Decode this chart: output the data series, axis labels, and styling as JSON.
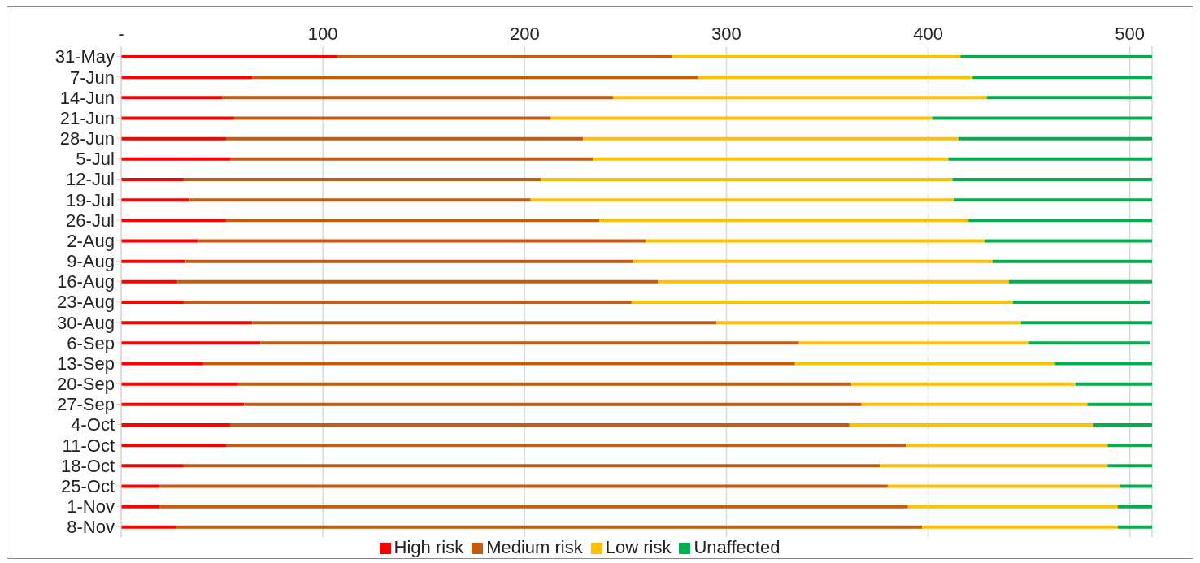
{
  "chart_data": {
    "type": "bar",
    "orientation": "horizontal",
    "stacked": true,
    "categories": [
      "31-May",
      "7-Jun",
      "14-Jun",
      "21-Jun",
      "28-Jun",
      "5-Jul",
      "12-Jul",
      "19-Jul",
      "26-Jul",
      "2-Aug",
      "9-Aug",
      "16-Aug",
      "23-Aug",
      "30-Aug",
      "6-Sep",
      "13-Sep",
      "20-Sep",
      "27-Sep",
      "4-Oct",
      "11-Oct",
      "18-Oct",
      "25-Oct",
      "1-Nov",
      "8-Nov"
    ],
    "series": [
      {
        "name": "High risk",
        "color": "#ff0000",
        "values": [
          107,
          65,
          50,
          56,
          52,
          54,
          31,
          34,
          52,
          38,
          32,
          28,
          31,
          65,
          69,
          41,
          58,
          61,
          54,
          52,
          31,
          19,
          19,
          27
        ]
      },
      {
        "name": "Medium risk",
        "color": "#c55a11",
        "values": [
          166,
          221,
          194,
          157,
          177,
          180,
          177,
          169,
          185,
          222,
          222,
          238,
          222,
          230,
          267,
          293,
          304,
          306,
          307,
          337,
          345,
          361,
          371,
          370
        ]
      },
      {
        "name": "Low risk",
        "color": "#ffc000",
        "values": [
          143,
          136,
          185,
          189,
          186,
          176,
          204,
          210,
          183,
          168,
          178,
          174,
          189,
          151,
          114,
          129,
          111,
          112,
          121,
          100,
          113,
          115,
          104,
          97
        ]
      },
      {
        "name": "Unaffected",
        "color": "#00b050",
        "values": [
          95,
          89,
          82,
          109,
          96,
          101,
          99,
          98,
          91,
          83,
          79,
          71,
          68,
          65,
          60,
          48,
          38,
          32,
          29,
          22,
          22,
          16,
          17,
          17
        ]
      }
    ],
    "xlim": [
      0,
      511
    ],
    "xticks": [
      {
        "value": 0,
        "label": "-"
      },
      100,
      200,
      300,
      400,
      500
    ],
    "grid": "x",
    "legend": "bottom"
  }
}
